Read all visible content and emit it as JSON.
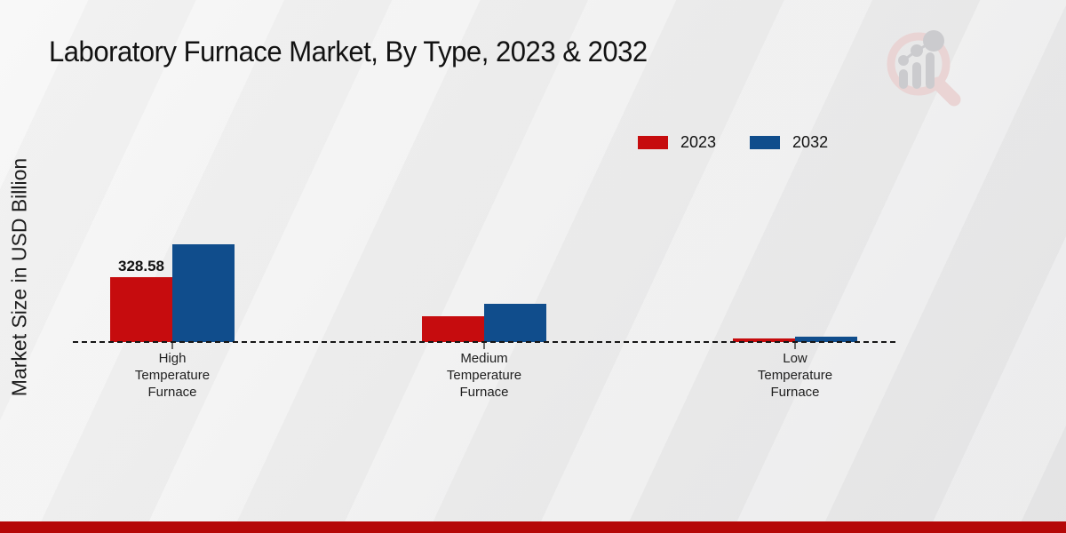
{
  "page": {
    "title": "Laboratory Furnace Market, By Type, 2023 & 2032"
  },
  "colors": {
    "series_2023": "#c60c0e",
    "series_2032": "#104d8c",
    "baseline": "#161616",
    "footer_band": "#b50808",
    "watermark_pink": "#ead2d2",
    "watermark_gray": "#c8c8cc"
  },
  "legend": {
    "items": [
      {
        "label": "2023",
        "color": "#c60c0e"
      },
      {
        "label": "2032",
        "color": "#104d8c"
      }
    ]
  },
  "chart_data": {
    "type": "bar",
    "title": "Laboratory Furnace Market, By Type, 2023 & 2032",
    "xlabel": "",
    "ylabel": "Market Size in USD Billion",
    "categories": [
      "High Temperature Furnace",
      "Medium Temperature Furnace",
      "Low Temperature Furnace"
    ],
    "category_label_lines": [
      [
        "High",
        "Temperature",
        "Furnace"
      ],
      [
        "Medium",
        "Temperature",
        "Furnace"
      ],
      [
        "Low",
        "Temperature",
        "Furnace"
      ]
    ],
    "series": [
      {
        "name": "2023",
        "color": "#c60c0e",
        "values": [
          328.58,
          130,
          18
        ]
      },
      {
        "name": "2032",
        "color": "#104d8c",
        "values": [
          495,
          193,
          27
        ]
      }
    ],
    "annotations": [
      {
        "series_index": 0,
        "category_index": 0,
        "text": "328.58"
      }
    ],
    "baseline": {
      "value": 0,
      "style": "dashed"
    },
    "ylim": [
      0,
      520
    ],
    "grid": false,
    "legend_position": "top-right"
  }
}
